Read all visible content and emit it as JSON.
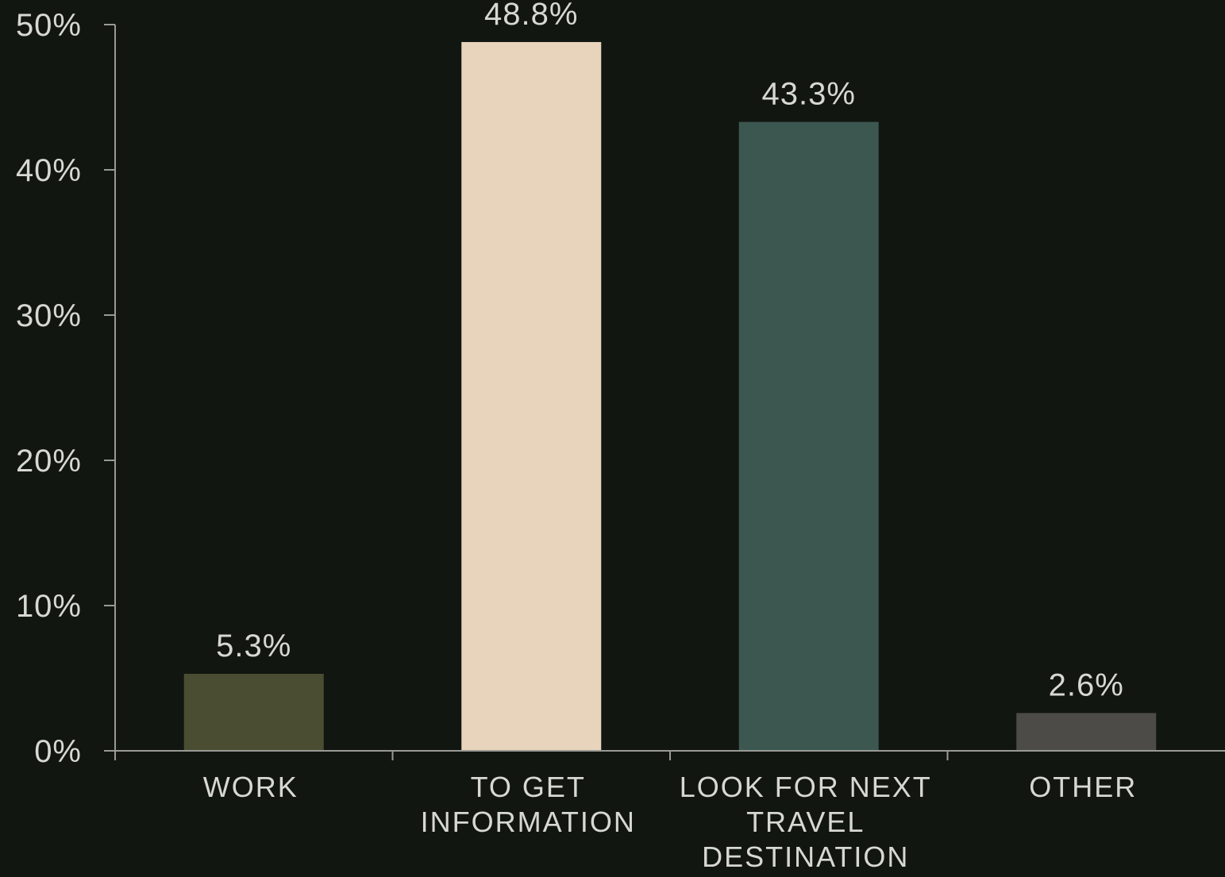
{
  "chart_data": {
    "type": "bar",
    "title": "",
    "xlabel": "",
    "ylabel": "",
    "ylim": [
      0,
      50
    ],
    "yticks": [
      0,
      10,
      20,
      30,
      40,
      50
    ],
    "ytick_labels": [
      "0%",
      "10%",
      "20%",
      "30%",
      "40%",
      "50%"
    ],
    "grid": false,
    "categories": [
      [
        "WORK"
      ],
      [
        "TO GET",
        "INFORMATION"
      ],
      [
        "LOOK FOR NEXT",
        "TRAVEL",
        "DESTINATION"
      ],
      [
        "OTHER"
      ]
    ],
    "values": [
      5.3,
      48.8,
      43.3,
      2.6
    ],
    "data_labels": [
      "5.3%",
      "48.8%",
      "43.3%",
      "2.6%"
    ],
    "colors": [
      "#4a4d31",
      "#e8d4bd",
      "#3c5750",
      "#4d4b47"
    ],
    "background_color": "#111611",
    "axis_color": "#9a9a95",
    "text_color": "#d8d8d2"
  }
}
